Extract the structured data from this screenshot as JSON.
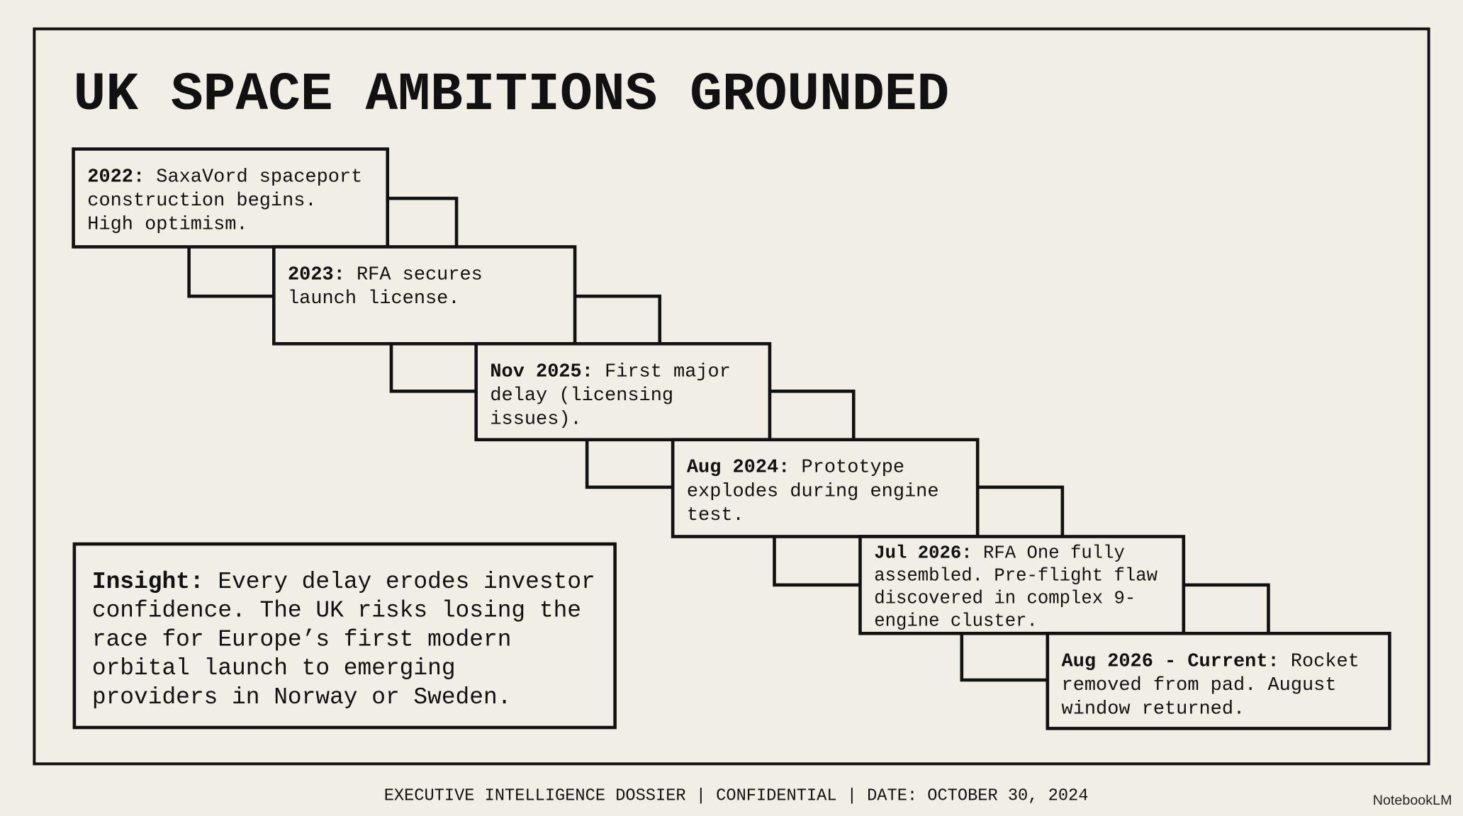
{
  "header": {
    "title": "UK SPACE AMBITIONS GROUNDED"
  },
  "events": [
    {
      "label": "2022:",
      "lines": [
        "SaxaVord spaceport",
        "construction begins.",
        "High optimism."
      ]
    },
    {
      "label": "2023:",
      "lines": [
        "RFA secures",
        "launch license."
      ]
    },
    {
      "label": "Nov 2025:",
      "lines": [
        "First major",
        "delay (licensing",
        "issues)."
      ]
    },
    {
      "label": "Aug 2024:",
      "lines": [
        "Prototype",
        "explodes during engine",
        "test."
      ]
    },
    {
      "label": "Jul 2026:",
      "lines": [
        "RFA One fully",
        "assembled. Pre-flight flaw",
        "discovered in complex 9-",
        "engine cluster."
      ]
    },
    {
      "label": "Aug 2026 - Current:",
      "lines": [
        "Rocket",
        "removed from pad. August",
        "window returned."
      ]
    }
  ],
  "insight": {
    "label": "Insight:",
    "lines": [
      "Every delay erodes investor",
      "confidence. The UK risks losing the",
      "race for Europe’s first modern",
      "orbital launch to emerging",
      "providers in Norway or Sweden."
    ]
  },
  "footer": "EXECUTIVE INTELLIGENCE DOSSIER | CONFIDENTIAL | DATE: OCTOBER 30, 2024",
  "watermark": "NotebookLM"
}
